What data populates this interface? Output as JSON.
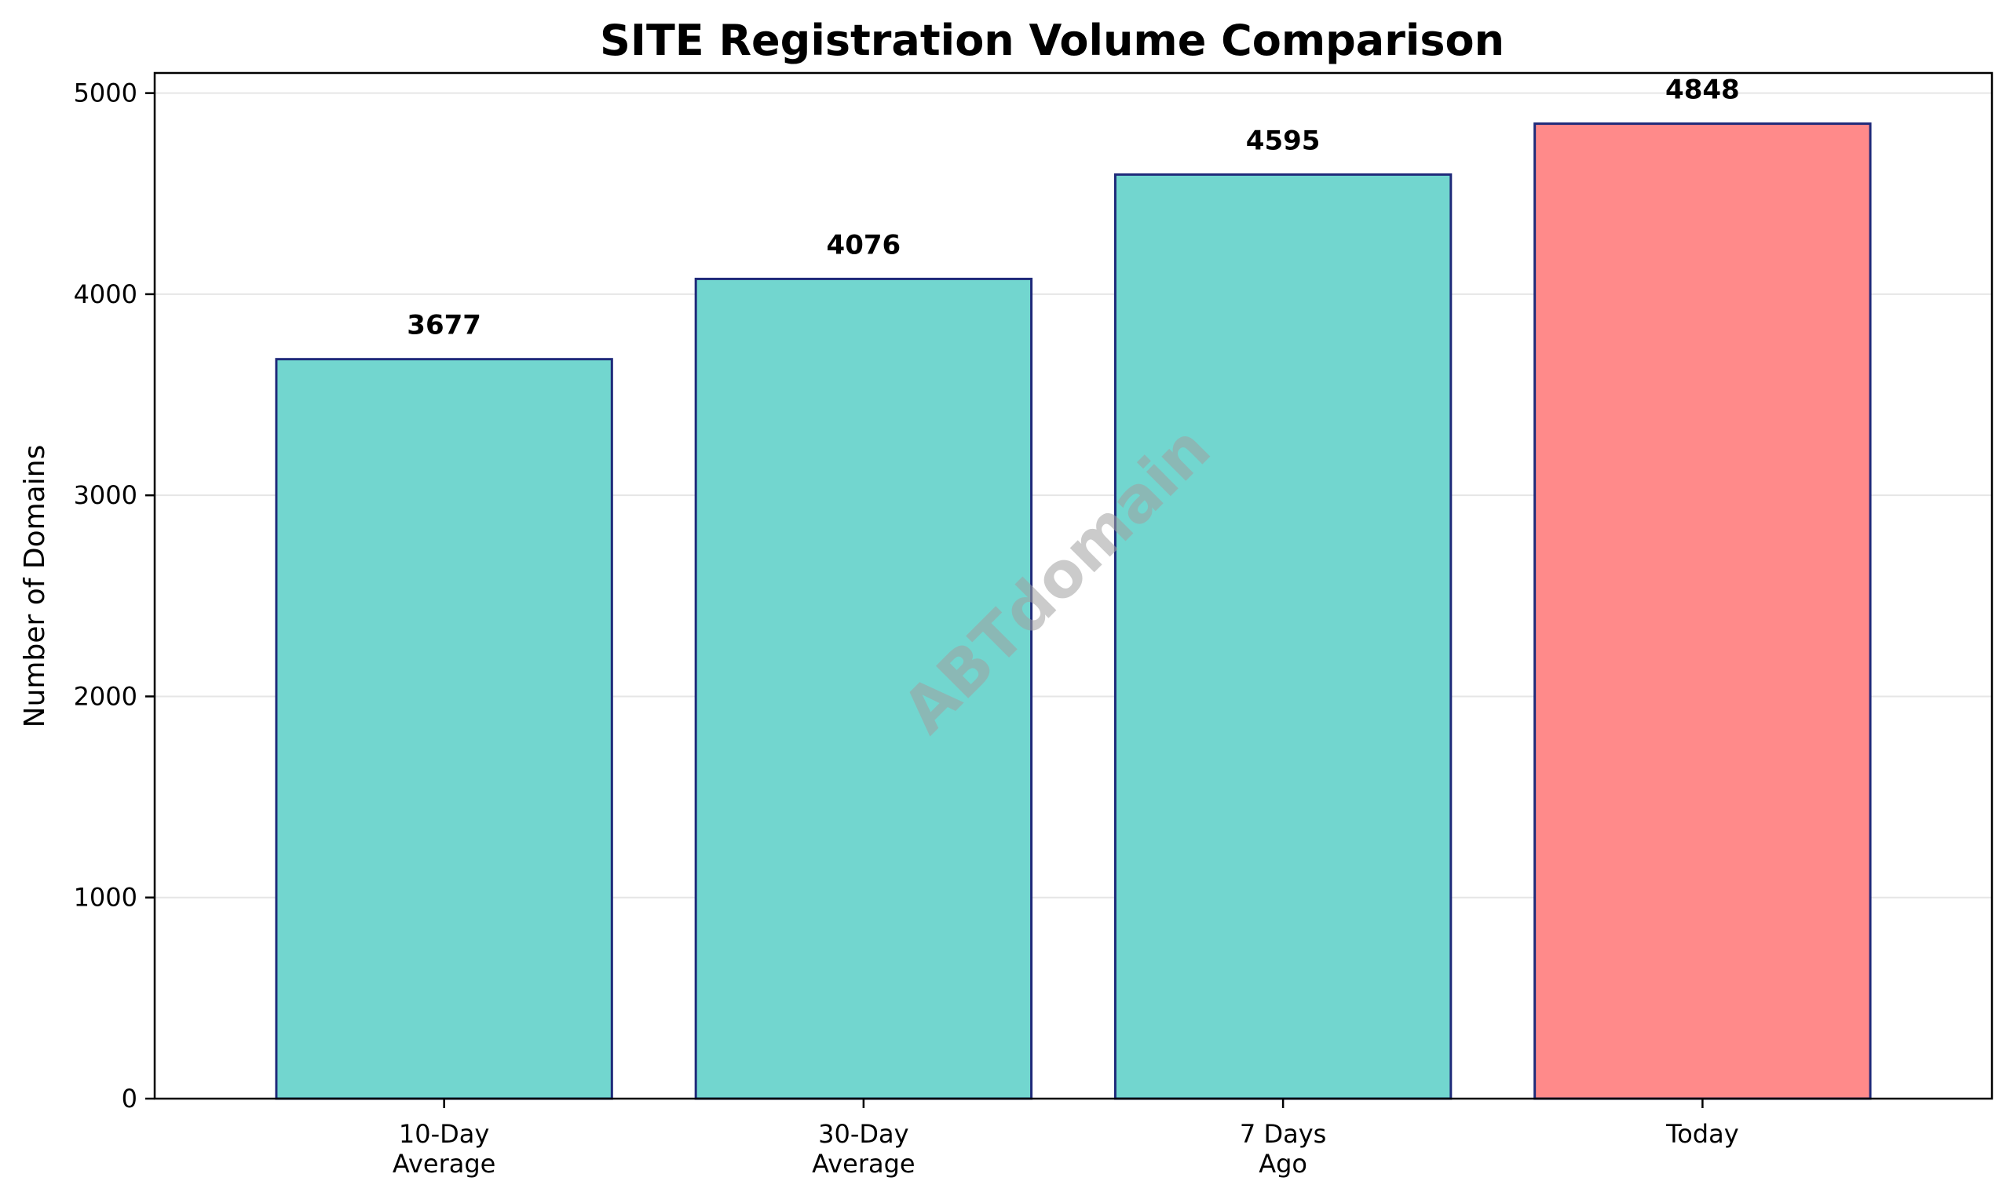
{
  "colors": {
    "bar_default": "#72D6CF",
    "bar_highlight": "#FF8A8A",
    "bar_edge": "#1f2a7a",
    "grid": "#e6e6e6",
    "axis": "#000000"
  },
  "watermark": "ABTdomain",
  "chart_data": {
    "type": "bar",
    "title": "SITE Registration Volume Comparison",
    "xlabel": "",
    "ylabel": "Number of Domains",
    "categories": [
      [
        "10-Day",
        "Average"
      ],
      [
        "30-Day",
        "Average"
      ],
      [
        "7 Days",
        "Ago"
      ],
      [
        "Today"
      ]
    ],
    "values": [
      3677,
      4076,
      4595,
      4848
    ],
    "data_labels": [
      "3677",
      "4076",
      "4595",
      "4848"
    ],
    "highlight_index": 3,
    "ylim": [
      0,
      5100
    ],
    "yticks": [
      0,
      1000,
      2000,
      3000,
      4000,
      5000
    ],
    "ytick_labels": [
      "0",
      "1000",
      "2000",
      "3000",
      "4000",
      "5000"
    ],
    "grid": "horizontal",
    "legend": "none"
  }
}
